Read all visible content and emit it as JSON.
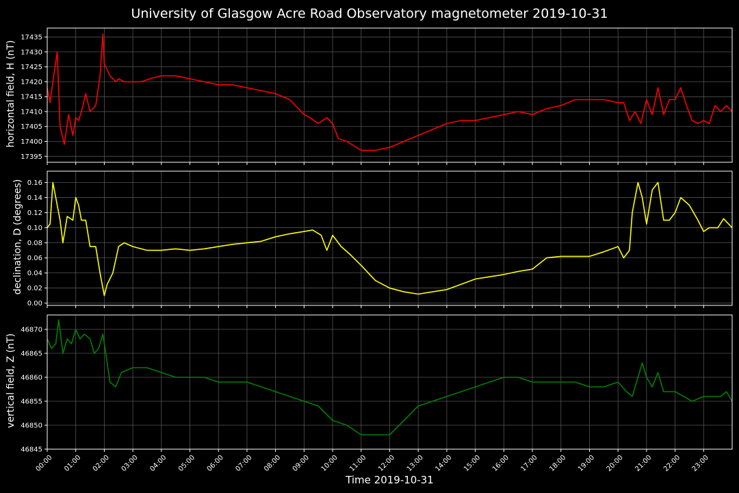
{
  "title": "University of Glasgow Acre Road Observatory magnetometer 2019-10-31",
  "xlabel": "Time 2019-10-31",
  "colors": {
    "background": "#000000",
    "grid": "#555555",
    "axes": "#ffffff",
    "H": "#ff0000",
    "D": "#ffff00",
    "Z": "#008000"
  },
  "x_ticks": [
    "00:00",
    "01:00",
    "02:00",
    "03:00",
    "04:00",
    "05:00",
    "06:00",
    "07:00",
    "08:00",
    "09:00",
    "10:00",
    "11:00",
    "12:00",
    "13:00",
    "14:00",
    "15:00",
    "16:00",
    "17:00",
    "18:00",
    "19:00",
    "20:00",
    "21:00",
    "22:00",
    "23:00"
  ],
  "chart_data": [
    {
      "type": "line",
      "ylabel": "horizontal field, H (nT)",
      "xlim": [
        0,
        24
      ],
      "ylim": [
        17393,
        17438
      ],
      "yticks": [
        17395,
        17400,
        17405,
        17410,
        17415,
        17420,
        17425,
        17430,
        17435
      ],
      "grid": true,
      "color": "#ff0000",
      "x": [
        0,
        0.1,
        0.2,
        0.35,
        0.45,
        0.6,
        0.75,
        0.9,
        1.0,
        1.1,
        1.2,
        1.35,
        1.5,
        1.7,
        1.85,
        1.95,
        2.0,
        2.2,
        2.4,
        2.5,
        2.7,
        3.0,
        3.3,
        3.6,
        4.0,
        4.5,
        5.0,
        5.5,
        6.0,
        6.5,
        7.0,
        7.5,
        8.0,
        8.5,
        9.0,
        9.2,
        9.5,
        9.8,
        10.0,
        10.2,
        10.5,
        11.0,
        11.5,
        12.0,
        12.5,
        13.0,
        13.5,
        14.0,
        14.5,
        15.0,
        15.5,
        16.0,
        16.5,
        17.0,
        17.5,
        18.0,
        18.5,
        19.0,
        19.5,
        20.0,
        20.2,
        20.4,
        20.6,
        20.8,
        21.0,
        21.2,
        21.4,
        21.6,
        21.8,
        22.0,
        22.2,
        22.4,
        22.6,
        22.8,
        23.0,
        23.2,
        23.4,
        23.6,
        23.8,
        24.0
      ],
      "y": [
        17418,
        17413,
        17420,
        17430,
        17405,
        17399,
        17409,
        17402,
        17408,
        17407,
        17410,
        17416,
        17410,
        17412,
        17422,
        17436,
        17426,
        17422,
        17420,
        17421,
        17420,
        17420,
        17420,
        17421,
        17422,
        17422,
        17421,
        17420,
        17419,
        17419,
        17418,
        17417,
        17416,
        17414,
        17409,
        17408,
        17406,
        17408,
        17406,
        17401,
        17400,
        17397,
        17397,
        17398,
        17400,
        17402,
        17404,
        17406,
        17407,
        17407,
        17408,
        17409,
        17410,
        17409,
        17411,
        17412,
        17414,
        17414,
        17414,
        17413,
        17413,
        17407,
        17410,
        17406,
        17414,
        17409,
        17418,
        17409,
        17414,
        17414,
        17418,
        17412,
        17407,
        17406,
        17407,
        17406,
        17412,
        17410,
        17412,
        17410
      ]
    },
    {
      "type": "line",
      "ylabel": "declination, D (degrees)",
      "xlim": [
        0,
        24
      ],
      "ylim": [
        -0.003,
        0.175
      ],
      "yticks": [
        0.0,
        0.02,
        0.04,
        0.06,
        0.08,
        0.1,
        0.12,
        0.14,
        0.16
      ],
      "yticklabels": [
        "0.00",
        "0.02",
        "0.04",
        "0.06",
        "0.08",
        "0.10",
        "0.12",
        "0.14",
        "0.16"
      ],
      "grid": true,
      "color": "#ffff00",
      "x": [
        0,
        0.1,
        0.2,
        0.3,
        0.45,
        0.55,
        0.7,
        0.9,
        1.0,
        1.1,
        1.2,
        1.35,
        1.5,
        1.7,
        1.85,
        2.0,
        2.1,
        2.3,
        2.5,
        2.7,
        3.0,
        3.5,
        4.0,
        4.5,
        5.0,
        5.5,
        6.0,
        6.5,
        7.0,
        7.5,
        8.0,
        8.5,
        9.0,
        9.3,
        9.6,
        9.8,
        10.0,
        10.3,
        10.6,
        11.0,
        11.5,
        12.0,
        12.5,
        13.0,
        13.5,
        14.0,
        14.5,
        15.0,
        15.5,
        16.0,
        16.5,
        17.0,
        17.5,
        18.0,
        18.5,
        19.0,
        19.5,
        20.0,
        20.2,
        20.4,
        20.5,
        20.7,
        20.85,
        21.0,
        21.2,
        21.4,
        21.6,
        21.8,
        22.0,
        22.2,
        22.5,
        22.8,
        23.0,
        23.2,
        23.5,
        23.7,
        24.0
      ],
      "y": [
        0.1,
        0.105,
        0.16,
        0.14,
        0.11,
        0.08,
        0.115,
        0.11,
        0.14,
        0.13,
        0.11,
        0.11,
        0.075,
        0.075,
        0.04,
        0.01,
        0.025,
        0.04,
        0.075,
        0.08,
        0.075,
        0.07,
        0.07,
        0.072,
        0.07,
        0.072,
        0.075,
        0.078,
        0.08,
        0.082,
        0.088,
        0.092,
        0.095,
        0.097,
        0.09,
        0.07,
        0.09,
        0.075,
        0.065,
        0.05,
        0.03,
        0.02,
        0.015,
        0.012,
        0.015,
        0.018,
        0.025,
        0.032,
        0.035,
        0.038,
        0.042,
        0.045,
        0.06,
        0.062,
        0.062,
        0.062,
        0.068,
        0.075,
        0.06,
        0.07,
        0.12,
        0.16,
        0.14,
        0.105,
        0.15,
        0.16,
        0.11,
        0.11,
        0.12,
        0.14,
        0.13,
        0.11,
        0.095,
        0.1,
        0.1,
        0.112,
        0.1
      ]
    },
    {
      "type": "line",
      "ylabel": "vertical field, Z (nT)",
      "xlim": [
        0,
        24
      ],
      "ylim": [
        46845,
        46873
      ],
      "yticks": [
        46845,
        46850,
        46855,
        46860,
        46865,
        46870
      ],
      "grid": true,
      "color": "#008000",
      "x": [
        0,
        0.15,
        0.3,
        0.4,
        0.55,
        0.7,
        0.85,
        1.0,
        1.15,
        1.3,
        1.5,
        1.65,
        1.8,
        1.95,
        2.05,
        2.2,
        2.4,
        2.6,
        3.0,
        3.5,
        4.0,
        4.5,
        5.0,
        5.5,
        6.0,
        6.5,
        7.0,
        7.5,
        8.0,
        8.5,
        9.0,
        9.5,
        10.0,
        10.5,
        11.0,
        11.5,
        12.0,
        12.5,
        13.0,
        13.5,
        14.0,
        14.5,
        15.0,
        15.5,
        16.0,
        16.5,
        17.0,
        17.5,
        18.0,
        18.5,
        19.0,
        19.5,
        20.0,
        20.3,
        20.5,
        20.7,
        20.85,
        21.0,
        21.2,
        21.4,
        21.6,
        22.0,
        22.3,
        22.6,
        23.0,
        23.3,
        23.6,
        23.8,
        24.0
      ],
      "y": [
        46868,
        46866,
        46867,
        46872,
        46865,
        46868,
        46867,
        46870,
        46868,
        46869,
        46868,
        46865,
        46866,
        46869,
        46865,
        46859,
        46858,
        46861,
        46862,
        46862,
        46861,
        46860,
        46860,
        46860,
        46859,
        46859,
        46859,
        46858,
        46857,
        46856,
        46855,
        46854,
        46851,
        46850,
        46848,
        46848,
        46848,
        46851,
        46854,
        46855,
        46856,
        46857,
        46858,
        46859,
        46860,
        46860,
        46859,
        46859,
        46859,
        46859,
        46858,
        46858,
        46859,
        46857,
        46856,
        46860,
        46863,
        46860,
        46858,
        46861,
        46857,
        46857,
        46856,
        46855,
        46856,
        46856,
        46856,
        46857,
        46855
      ]
    }
  ]
}
